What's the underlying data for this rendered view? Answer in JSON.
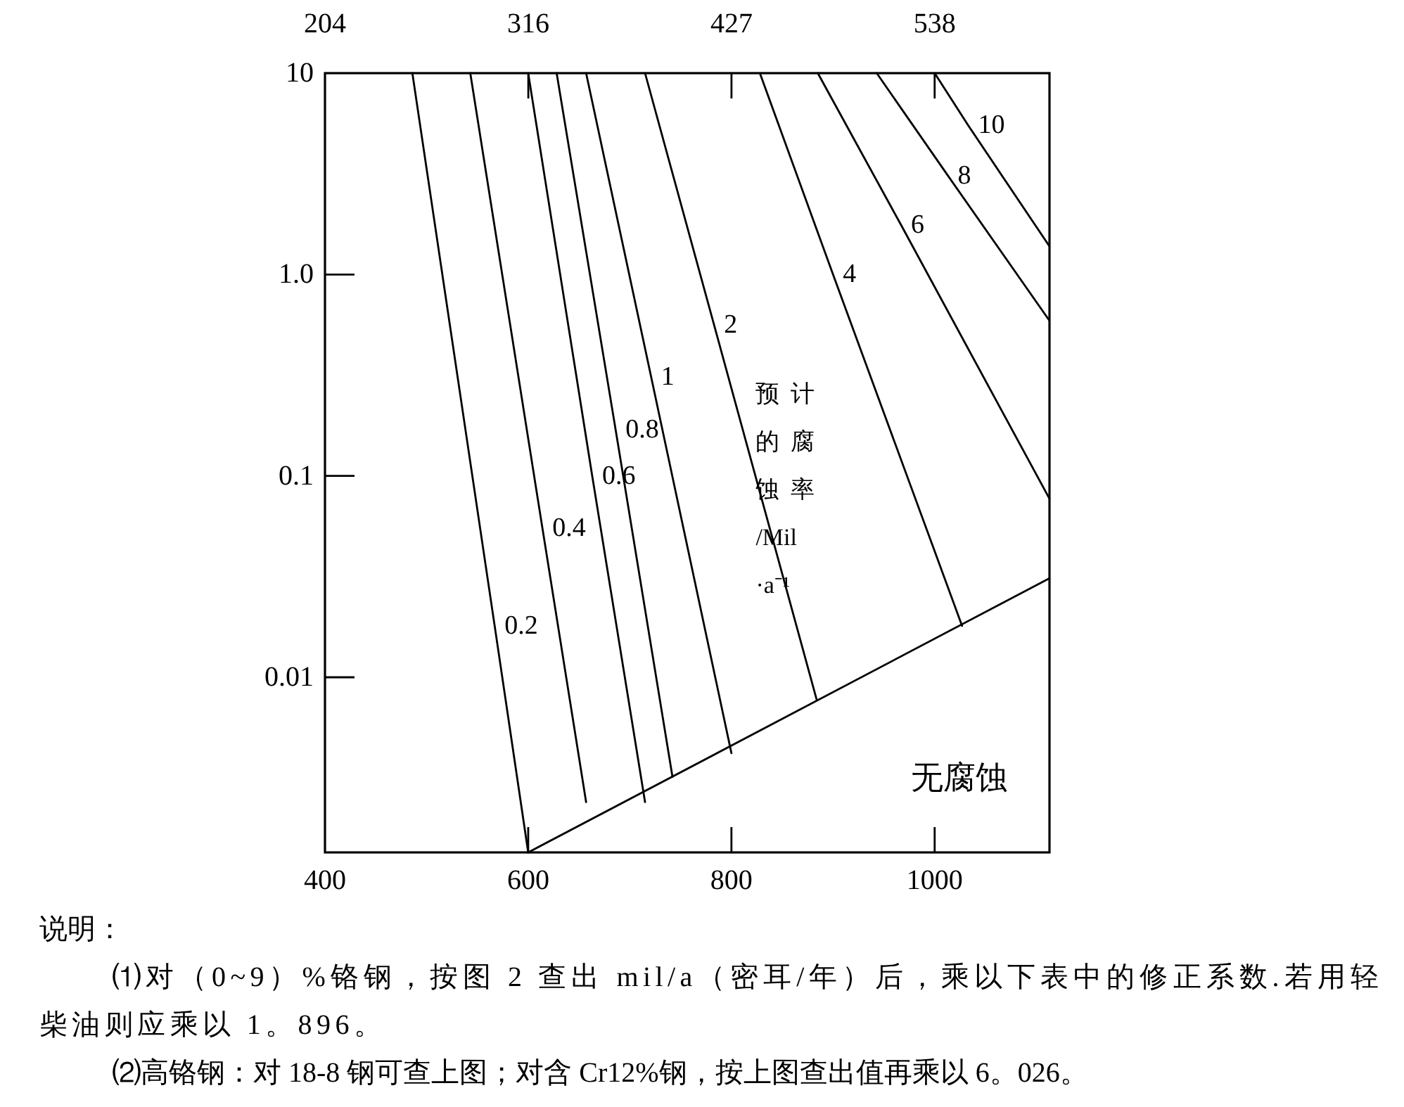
{
  "chart_data": {
    "type": "line",
    "xlim": [
      400,
      1113
    ],
    "xticks": [
      400,
      600,
      800,
      1000
    ],
    "x2lim": [
      204.4,
      600.6
    ],
    "x2ticks": [
      {
        "value": 204.4,
        "label": "204"
      },
      {
        "value": 315.6,
        "label": "316"
      },
      {
        "value": 426.7,
        "label": "427"
      },
      {
        "value": 537.8,
        "label": "538"
      }
    ],
    "ylim": [
      0.00135,
      10
    ],
    "yticks": [
      0.01,
      0.1,
      {
        "value": 1,
        "label": "1.0"
      },
      10
    ],
    "log": "y",
    "grid": false,
    "legend": false,
    "marker": "none",
    "line_style": "solid",
    "series": [
      {
        "name": "0.2",
        "color": "#000000",
        "x": [
          486,
          567,
          600
        ],
        "values": [
          10,
          0.018,
          0.00135
        ]
      },
      {
        "name": "0.4",
        "color": "#000000",
        "x": [
          543,
          614,
          657
        ],
        "values": [
          10,
          0.055,
          0.0024
        ]
      },
      {
        "name": "0.6",
        "color": "#000000",
        "x": [
          600,
          663,
          715
        ],
        "values": [
          10,
          0.1,
          0.0024
        ]
      },
      {
        "name": "0.8",
        "color": "#000000",
        "x": [
          628,
          686,
          742
        ],
        "values": [
          10,
          0.17,
          0.0032
        ]
      },
      {
        "name": "1",
        "color": "#000000",
        "x": [
          657,
          721,
          800
        ],
        "values": [
          10,
          0.31,
          0.0042
        ]
      },
      {
        "name": "2",
        "color": "#000000",
        "x": [
          715,
          783,
          884
        ],
        "values": [
          10,
          0.56,
          0.0077
        ]
      },
      {
        "name": "4",
        "color": "#000000",
        "x": [
          828,
          900,
          1027
        ],
        "values": [
          10,
          1.0,
          0.018
        ]
      },
      {
        "name": "6",
        "color": "#000000",
        "x": [
          885,
          967,
          1113
        ],
        "values": [
          10,
          1.76,
          0.077
        ]
      },
      {
        "name": "8",
        "color": "#000000",
        "x": [
          943,
          1013,
          1113
        ],
        "values": [
          10,
          3.1,
          0.59
        ]
      },
      {
        "name": "10",
        "color": "#000000",
        "x": [
          1000,
          1033,
          1113
        ],
        "values": [
          10,
          5.5,
          1.38
        ]
      },
      {
        "color": "#000000",
        "x": [
          600,
          1113
        ],
        "values": [
          0.00135,
          0.031
        ]
      }
    ],
    "annotations": [
      "预计的腐蚀率/Mil·a⁻¹",
      "无腐蚀",
      "说明：",
      "⑴对（0~9）%铬钢，按图 2 查出 mil/a（密耳/年）后，乘以下表中的修正系数.若用轻柴油则应乘以 1。896。",
      "⑵高铬钢：对 18-8 钢可查上图；对含 Cr12%钢，按上图查出值再乘以 6。026。"
    ]
  }
}
